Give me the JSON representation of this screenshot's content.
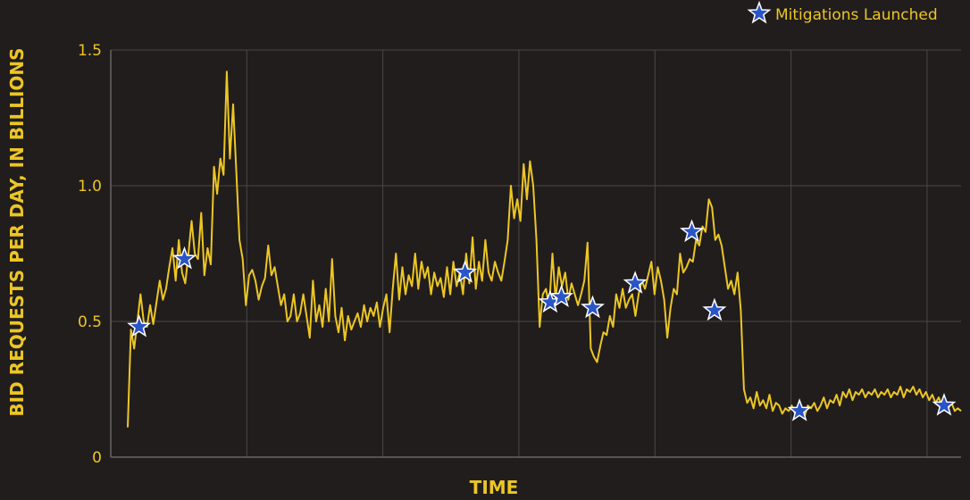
{
  "chart_data": {
    "type": "line",
    "title": "",
    "xlabel": "TIME",
    "ylabel": "BID REQUESTS PER DAY, IN BILLIONS",
    "ylim": [
      0,
      1.5
    ],
    "xlim": [
      0,
      300
    ],
    "y_ticks": [
      {
        "value": 0,
        "label": "0"
      },
      {
        "value": 0.5,
        "label": "0.5"
      },
      {
        "value": 1.0,
        "label": "1.0"
      },
      {
        "value": 1.5,
        "label": "1.5"
      }
    ],
    "x_tick_labels": [],
    "grid": true,
    "legend": {
      "position": "top-right",
      "entries": [
        {
          "label": "Mitigations Launched",
          "marker": "star"
        }
      ]
    },
    "colors": {
      "background": "#211d1d",
      "line": "#ecc625",
      "text": "#ecc625",
      "grid": "#4b4747",
      "star_fill": "#2a55c7",
      "star_stroke": "#ffffff"
    },
    "series": [
      {
        "values": [
          0.11,
          0.47,
          0.4,
          0.5,
          0.6,
          0.5,
          0.48,
          0.56,
          0.49,
          0.57,
          0.65,
          0.58,
          0.62,
          0.7,
          0.77,
          0.65,
          0.8,
          0.68,
          0.64,
          0.75,
          0.87,
          0.75,
          0.73,
          0.9,
          0.67,
          0.77,
          0.71,
          1.07,
          0.97,
          1.1,
          1.04,
          1.42,
          1.1,
          1.3,
          1.05,
          0.8,
          0.73,
          0.56,
          0.67,
          0.69,
          0.65,
          0.58,
          0.63,
          0.66,
          0.78,
          0.67,
          0.7,
          0.63,
          0.56,
          0.6,
          0.5,
          0.52,
          0.6,
          0.5,
          0.53,
          0.6,
          0.52,
          0.44,
          0.65,
          0.5,
          0.56,
          0.48,
          0.62,
          0.5,
          0.73,
          0.52,
          0.46,
          0.55,
          0.43,
          0.52,
          0.47,
          0.5,
          0.53,
          0.48,
          0.56,
          0.5,
          0.55,
          0.52,
          0.57,
          0.48,
          0.55,
          0.6,
          0.46,
          0.62,
          0.75,
          0.58,
          0.7,
          0.6,
          0.67,
          0.63,
          0.75,
          0.62,
          0.72,
          0.66,
          0.7,
          0.6,
          0.68,
          0.63,
          0.66,
          0.59,
          0.7,
          0.6,
          0.72,
          0.63,
          0.68,
          0.6,
          0.75,
          0.64,
          0.81,
          0.62,
          0.72,
          0.65,
          0.8,
          0.68,
          0.65,
          0.72,
          0.68,
          0.65,
          0.72,
          0.8,
          1.0,
          0.88,
          0.95,
          0.87,
          1.08,
          0.95,
          1.09,
          1.0,
          0.8,
          0.48,
          0.6,
          0.62,
          0.55,
          0.75,
          0.58,
          0.7,
          0.63,
          0.68,
          0.58,
          0.64,
          0.6,
          0.56,
          0.6,
          0.65,
          0.79,
          0.4,
          0.37,
          0.35,
          0.41,
          0.46,
          0.45,
          0.52,
          0.48,
          0.6,
          0.55,
          0.62,
          0.55,
          0.58,
          0.6,
          0.52,
          0.6,
          0.65,
          0.62,
          0.67,
          0.72,
          0.6,
          0.7,
          0.65,
          0.58,
          0.44,
          0.55,
          0.62,
          0.6,
          0.75,
          0.68,
          0.7,
          0.73,
          0.72,
          0.8,
          0.78,
          0.85,
          0.83,
          0.95,
          0.92,
          0.8,
          0.82,
          0.78,
          0.7,
          0.62,
          0.65,
          0.6,
          0.68,
          0.54,
          0.25,
          0.2,
          0.22,
          0.18,
          0.24,
          0.19,
          0.21,
          0.18,
          0.23,
          0.17,
          0.2,
          0.19,
          0.16,
          0.18,
          0.17,
          0.19,
          0.16,
          0.18,
          0.17,
          0.15,
          0.19,
          0.18,
          0.2,
          0.17,
          0.19,
          0.22,
          0.18,
          0.21,
          0.2,
          0.23,
          0.19,
          0.24,
          0.22,
          0.25,
          0.21,
          0.24,
          0.23,
          0.25,
          0.22,
          0.24,
          0.23,
          0.25,
          0.22,
          0.24,
          0.23,
          0.25,
          0.22,
          0.24,
          0.23,
          0.26,
          0.22,
          0.25,
          0.24,
          0.26,
          0.23,
          0.25,
          0.22,
          0.24,
          0.21,
          0.23,
          0.2,
          0.22,
          0.19,
          0.21,
          0.18,
          0.2,
          0.17,
          0.18,
          0.17
        ]
      }
    ],
    "mitigations": [
      {
        "x": 10,
        "y": 0.48
      },
      {
        "x": 26,
        "y": 0.73
      },
      {
        "x": 125,
        "y": 0.68
      },
      {
        "x": 155,
        "y": 0.57
      },
      {
        "x": 159,
        "y": 0.59
      },
      {
        "x": 170,
        "y": 0.55
      },
      {
        "x": 185,
        "y": 0.64
      },
      {
        "x": 205,
        "y": 0.83
      },
      {
        "x": 213,
        "y": 0.54
      },
      {
        "x": 243,
        "y": 0.17
      },
      {
        "x": 294,
        "y": 0.19
      }
    ]
  }
}
